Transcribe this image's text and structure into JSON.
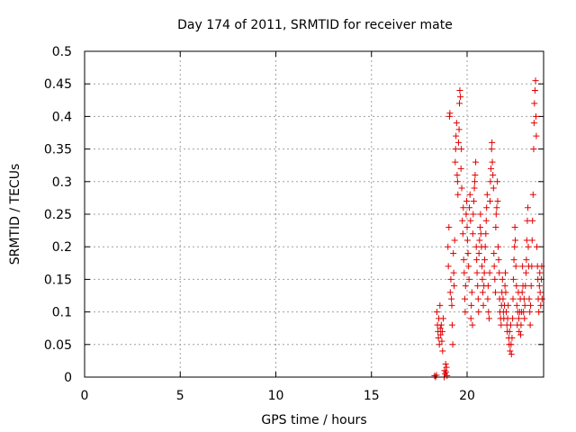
{
  "chart_data": {
    "type": "scatter",
    "title": "Day 174 of 2011, SRMTID for receiver mate",
    "xlabel": "GPS time / hours",
    "ylabel": "SRMTID / TECUs",
    "xlim": [
      0,
      24
    ],
    "ylim": [
      0,
      0.5
    ],
    "xticks": [
      0,
      5,
      10,
      15,
      20
    ],
    "xtick_labels": [
      "0",
      "5",
      "10",
      "15",
      "20"
    ],
    "yticks": [
      0,
      0.05,
      0.1,
      0.15,
      0.2,
      0.25,
      0.3,
      0.35,
      0.4,
      0.45,
      0.5
    ],
    "ytick_labels": [
      "0",
      "0.05",
      "0.1",
      "0.15",
      "0.2",
      "0.25",
      "0.3",
      "0.35",
      "0.4",
      "0.45",
      "0.5"
    ],
    "grid": true,
    "marker": "plus",
    "series_color": "#e00000",
    "series": [
      {
        "name": "SRMTID",
        "points": [
          [
            18.3,
            0.002
          ],
          [
            18.35,
            0.0
          ],
          [
            18.4,
            0.003
          ],
          [
            18.42,
            0.1
          ],
          [
            18.45,
            0.08
          ],
          [
            18.48,
            0.07
          ],
          [
            18.5,
            0.06
          ],
          [
            18.52,
            0.09
          ],
          [
            18.55,
            0.05
          ],
          [
            18.58,
            0.11
          ],
          [
            18.6,
            0.075
          ],
          [
            18.62,
            0.065
          ],
          [
            18.65,
            0.08
          ],
          [
            18.68,
            0.055
          ],
          [
            18.7,
            0.07
          ],
          [
            18.72,
            0.04
          ],
          [
            18.75,
            0.09
          ],
          [
            18.8,
            0.0
          ],
          [
            18.82,
            0.01
          ],
          [
            18.85,
            0.005
          ],
          [
            18.88,
            0.02
          ],
          [
            18.9,
            0.008
          ],
          [
            18.92,
            0.015
          ],
          [
            18.95,
            0.002
          ],
          [
            19.0,
            0.2
          ],
          [
            19.02,
            0.17
          ],
          [
            19.05,
            0.23
          ],
          [
            19.08,
            0.4
          ],
          [
            19.1,
            0.405
          ],
          [
            19.12,
            0.13
          ],
          [
            19.15,
            0.15
          ],
          [
            19.18,
            0.12
          ],
          [
            19.2,
            0.11
          ],
          [
            19.22,
            0.08
          ],
          [
            19.25,
            0.05
          ],
          [
            19.28,
            0.19
          ],
          [
            19.3,
            0.16
          ],
          [
            19.32,
            0.14
          ],
          [
            19.35,
            0.21
          ],
          [
            19.38,
            0.33
          ],
          [
            19.4,
            0.35
          ],
          [
            19.42,
            0.37
          ],
          [
            19.45,
            0.39
          ],
          [
            19.48,
            0.31
          ],
          [
            19.5,
            0.3
          ],
          [
            19.52,
            0.28
          ],
          [
            19.55,
            0.36
          ],
          [
            19.58,
            0.38
          ],
          [
            19.6,
            0.42
          ],
          [
            19.62,
            0.44
          ],
          [
            19.65,
            0.43
          ],
          [
            19.68,
            0.32
          ],
          [
            19.7,
            0.35
          ],
          [
            19.72,
            0.29
          ],
          [
            19.75,
            0.24
          ],
          [
            19.78,
            0.22
          ],
          [
            19.8,
            0.26
          ],
          [
            19.82,
            0.18
          ],
          [
            19.85,
            0.16
          ],
          [
            19.88,
            0.12
          ],
          [
            19.9,
            0.1
          ],
          [
            19.92,
            0.14
          ],
          [
            19.95,
            0.25
          ],
          [
            19.98,
            0.27
          ],
          [
            20.0,
            0.23
          ],
          [
            20.02,
            0.21
          ],
          [
            20.05,
            0.19
          ],
          [
            20.08,
            0.17
          ],
          [
            20.1,
            0.15
          ],
          [
            20.12,
            0.26
          ],
          [
            20.15,
            0.28
          ],
          [
            20.18,
            0.24
          ],
          [
            20.2,
            0.09
          ],
          [
            20.22,
            0.11
          ],
          [
            20.25,
            0.13
          ],
          [
            20.28,
            0.08
          ],
          [
            20.3,
            0.22
          ],
          [
            20.32,
            0.25
          ],
          [
            20.35,
            0.27
          ],
          [
            20.38,
            0.29
          ],
          [
            20.4,
            0.3
          ],
          [
            20.42,
            0.31
          ],
          [
            20.45,
            0.33
          ],
          [
            20.48,
            0.2
          ],
          [
            20.5,
            0.18
          ],
          [
            20.52,
            0.16
          ],
          [
            20.55,
            0.14
          ],
          [
            20.58,
            0.12
          ],
          [
            20.6,
            0.1
          ],
          [
            20.62,
            0.19
          ],
          [
            20.65,
            0.21
          ],
          [
            20.68,
            0.23
          ],
          [
            20.7,
            0.25
          ],
          [
            20.72,
            0.22
          ],
          [
            20.75,
            0.2
          ],
          [
            20.78,
            0.17
          ],
          [
            20.8,
            0.15
          ],
          [
            20.82,
            0.13
          ],
          [
            20.85,
            0.11
          ],
          [
            20.88,
            0.14
          ],
          [
            20.9,
            0.16
          ],
          [
            20.92,
            0.18
          ],
          [
            20.95,
            0.2
          ],
          [
            20.98,
            0.22
          ],
          [
            21.0,
            0.24
          ],
          [
            21.02,
            0.26
          ],
          [
            21.05,
            0.28
          ],
          [
            21.08,
            0.12
          ],
          [
            21.1,
            0.14
          ],
          [
            21.12,
            0.1
          ],
          [
            21.15,
            0.09
          ],
          [
            21.18,
            0.16
          ],
          [
            21.2,
            0.27
          ],
          [
            21.22,
            0.3
          ],
          [
            21.25,
            0.32
          ],
          [
            21.28,
            0.35
          ],
          [
            21.3,
            0.36
          ],
          [
            21.32,
            0.33
          ],
          [
            21.35,
            0.31
          ],
          [
            21.38,
            0.29
          ],
          [
            21.4,
            0.19
          ],
          [
            21.42,
            0.17
          ],
          [
            21.45,
            0.15
          ],
          [
            21.48,
            0.13
          ],
          [
            21.5,
            0.23
          ],
          [
            21.52,
            0.25
          ],
          [
            21.55,
            0.26
          ],
          [
            21.58,
            0.3
          ],
          [
            21.6,
            0.27
          ],
          [
            21.62,
            0.2
          ],
          [
            21.65,
            0.18
          ],
          [
            21.68,
            0.16
          ],
          [
            21.7,
            0.12
          ],
          [
            21.72,
            0.1
          ],
          [
            21.75,
            0.09
          ],
          [
            21.78,
            0.08
          ],
          [
            21.8,
            0.11
          ],
          [
            21.82,
            0.13
          ],
          [
            21.85,
            0.15
          ],
          [
            21.88,
            0.12
          ],
          [
            21.9,
            0.1
          ],
          [
            21.92,
            0.09
          ],
          [
            21.95,
            0.11
          ],
          [
            21.98,
            0.14
          ],
          [
            22.0,
            0.16
          ],
          [
            22.02,
            0.13
          ],
          [
            22.05,
            0.1
          ],
          [
            22.08,
            0.08
          ],
          [
            22.1,
            0.07
          ],
          [
            22.12,
            0.09
          ],
          [
            22.15,
            0.11
          ],
          [
            22.18,
            0.06
          ],
          [
            22.2,
            0.05
          ],
          [
            22.22,
            0.07
          ],
          [
            22.25,
            0.04
          ],
          [
            22.28,
            0.08
          ],
          [
            22.3,
            0.05
          ],
          [
            22.32,
            0.035
          ],
          [
            22.35,
            0.06
          ],
          [
            22.38,
            0.09
          ],
          [
            22.4,
            0.12
          ],
          [
            22.42,
            0.15
          ],
          [
            22.45,
            0.18
          ],
          [
            22.48,
            0.2
          ],
          [
            22.5,
            0.23
          ],
          [
            22.52,
            0.21
          ],
          [
            22.55,
            0.17
          ],
          [
            22.58,
            0.14
          ],
          [
            22.6,
            0.11
          ],
          [
            22.62,
            0.08
          ],
          [
            22.65,
            0.1
          ],
          [
            22.68,
            0.13
          ],
          [
            22.7,
            0.09
          ],
          [
            22.72,
            0.07
          ],
          [
            22.75,
            0.1
          ],
          [
            22.78,
            0.12
          ],
          [
            22.8,
            0.065
          ],
          [
            22.82,
            0.08
          ],
          [
            22.85,
            0.1
          ],
          [
            22.88,
            0.13
          ],
          [
            22.9,
            0.17
          ],
          [
            22.92,
            0.14
          ],
          [
            22.95,
            0.1
          ],
          [
            22.98,
            0.12
          ],
          [
            23.0,
            0.09
          ],
          [
            23.02,
            0.11
          ],
          [
            23.05,
            0.14
          ],
          [
            23.08,
            0.16
          ],
          [
            23.1,
            0.18
          ],
          [
            23.12,
            0.21
          ],
          [
            23.15,
            0.24
          ],
          [
            23.18,
            0.26
          ],
          [
            23.2,
            0.2
          ],
          [
            23.22,
            0.17
          ],
          [
            23.25,
            0.12
          ],
          [
            23.28,
            0.1
          ],
          [
            23.3,
            0.08
          ],
          [
            23.32,
            0.11
          ],
          [
            23.35,
            0.14
          ],
          [
            23.38,
            0.17
          ],
          [
            23.4,
            0.21
          ],
          [
            23.42,
            0.24
          ],
          [
            23.45,
            0.28
          ],
          [
            23.48,
            0.35
          ],
          [
            23.5,
            0.39
          ],
          [
            23.52,
            0.42
          ],
          [
            23.55,
            0.44
          ],
          [
            23.58,
            0.455
          ],
          [
            23.6,
            0.4
          ],
          [
            23.62,
            0.37
          ],
          [
            23.65,
            0.2
          ],
          [
            23.68,
            0.17
          ],
          [
            23.7,
            0.15
          ],
          [
            23.72,
            0.12
          ],
          [
            23.75,
            0.1
          ],
          [
            23.78,
            0.14
          ],
          [
            23.8,
            0.16
          ],
          [
            23.82,
            0.13
          ],
          [
            23.85,
            0.11
          ],
          [
            23.88,
            0.15
          ],
          [
            23.9,
            0.17
          ],
          [
            23.92,
            0.12
          ]
        ]
      }
    ]
  }
}
